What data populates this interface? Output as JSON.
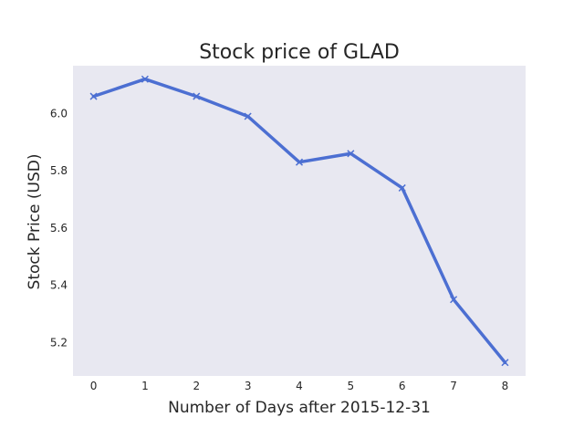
{
  "chart_data": {
    "type": "line",
    "title": "Stock price of GLAD",
    "xlabel": "Number of Days after 2015-12-31",
    "ylabel": "Stock Price (USD)",
    "x": [
      0,
      1,
      2,
      3,
      4,
      5,
      6,
      7,
      8
    ],
    "series": [
      {
        "values": [
          6.06,
          6.12,
          6.06,
          5.99,
          5.83,
          5.86,
          5.74,
          5.35,
          5.13
        ]
      }
    ],
    "xticks": [
      "0",
      "1",
      "2",
      "3",
      "4",
      "5",
      "6",
      "7",
      "8"
    ],
    "yticks": [
      "5.2",
      "5.4",
      "5.6",
      "5.8",
      "6.0"
    ],
    "xlim": [
      -0.4,
      8.4
    ],
    "ylim": [
      5.083,
      6.167
    ],
    "grid": false,
    "marker": "x",
    "colors": {
      "line": "#4c6fd2",
      "plot_bg": "#e8e8f1",
      "text": "#262626"
    }
  }
}
